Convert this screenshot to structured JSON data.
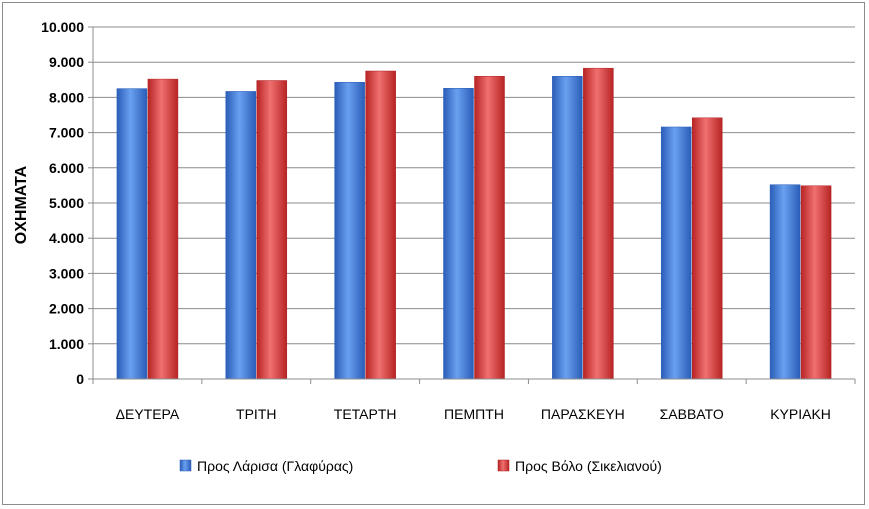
{
  "chart_data": {
    "type": "bar",
    "title": "",
    "xlabel": "",
    "ylabel": "ΟΧΗΜΑΤΑ",
    "ylim": [
      0,
      10000
    ],
    "yticks": [
      0,
      1000,
      2000,
      3000,
      4000,
      5000,
      6000,
      7000,
      8000,
      9000,
      10000
    ],
    "ytick_labels": [
      "0",
      "1.000",
      "2.000",
      "3.000",
      "4.000",
      "5.000",
      "6.000",
      "7.000",
      "8.000",
      "9.000",
      "10.000"
    ],
    "categories": [
      "ΔΕΥΤΕΡΑ",
      "ΤΡΙΤΗ",
      "ΤΕΤΑΡΤΗ",
      "ΠΕΜΠΤΗ",
      "ΠΑΡΑΣΚΕΥΗ",
      "ΣΑΒΒΑΤΟ",
      "ΚΥΡΙΑΚΗ"
    ],
    "series": [
      {
        "name": "Προς Λάρισα (Γλαφύρας)",
        "color": "#3c78d8",
        "values": [
          8250,
          8170,
          8430,
          8260,
          8600,
          7160,
          5520
        ]
      },
      {
        "name": "Προς Βόλο (Σικελιανού)",
        "color": "#d93a3a",
        "values": [
          8520,
          8480,
          8750,
          8600,
          8830,
          7420,
          5490
        ]
      }
    ],
    "grid": true,
    "legend_position": "bottom"
  }
}
